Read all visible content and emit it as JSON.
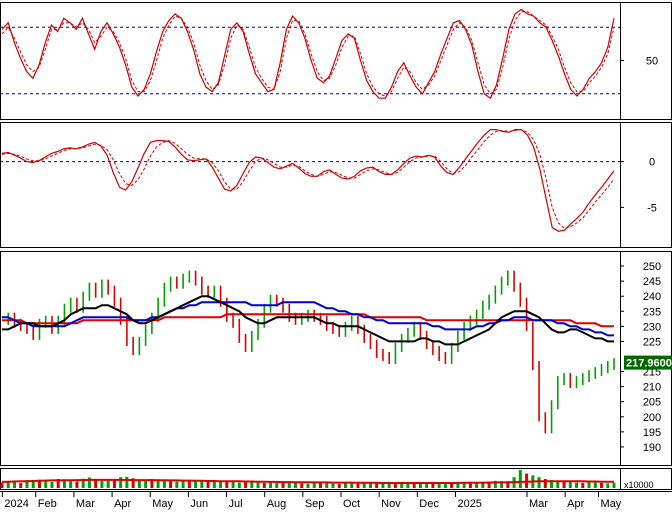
{
  "colors": {
    "price_line": "#000000",
    "candle_up": "#00a000",
    "candle_down": "#dd0000",
    "ma_short": "#000000",
    "ma_mid": "#0000cc",
    "ma_long": "#dd0000",
    "oscillator": "#cc0000",
    "guide": "#0000aa",
    "last_price_bg": "#006600",
    "last_price_fg": "#ffffff",
    "volume_up": "#00a000",
    "volume_down": "#dd0000",
    "volume_avg": "#dd0000"
  },
  "chart_data": [
    {
      "type": "line",
      "panel": "stochastic",
      "yticks": [
        "50"
      ],
      "ylim": [
        0,
        100
      ],
      "reference_lines": [
        20,
        80
      ],
      "series": [
        {
          "style": "solid",
          "values": [
            78,
            84,
            66,
            52,
            40,
            34,
            46,
            66,
            82,
            76,
            88,
            84,
            78,
            88,
            74,
            60,
            76,
            84,
            74,
            62,
            46,
            26,
            18,
            24,
            38,
            58,
            76,
            86,
            92,
            88,
            76,
            60,
            38,
            26,
            22,
            30,
            54,
            78,
            84,
            76,
            56,
            38,
            30,
            22,
            24,
            48,
            78,
            90,
            84,
            70,
            50,
            34,
            30,
            36,
            52,
            68,
            74,
            70,
            50,
            32,
            22,
            16,
            16,
            26,
            40,
            48,
            36,
            26,
            20,
            30,
            40,
            56,
            70,
            84,
            86,
            78,
            64,
            40,
            20,
            16,
            28,
            52,
            78,
            92,
            96,
            92,
            90,
            84,
            80,
            68,
            54,
            38,
            24,
            18,
            24,
            34,
            40,
            48,
            62,
            88
          ]
        },
        {
          "style": "dashed",
          "values": [
            74,
            80,
            70,
            58,
            46,
            40,
            44,
            60,
            78,
            78,
            84,
            84,
            80,
            84,
            78,
            66,
            72,
            80,
            76,
            66,
            52,
            32,
            22,
            22,
            32,
            50,
            70,
            82,
            90,
            88,
            80,
            66,
            46,
            32,
            24,
            28,
            46,
            70,
            82,
            78,
            62,
            44,
            34,
            26,
            24,
            40,
            70,
            86,
            86,
            74,
            56,
            40,
            32,
            34,
            46,
            62,
            72,
            72,
            56,
            38,
            26,
            20,
            18,
            22,
            34,
            44,
            40,
            30,
            24,
            28,
            36,
            50,
            64,
            78,
            84,
            80,
            68,
            48,
            28,
            20,
            24,
            44,
            70,
            86,
            94,
            94,
            90,
            86,
            82,
            72,
            60,
            44,
            30,
            22,
            22,
            30,
            36,
            44,
            56,
            80
          ]
        }
      ],
      "x_count": 100
    },
    {
      "type": "line",
      "panel": "macd",
      "yticks": [
        "0",
        "-5"
      ],
      "ylim": [
        -9,
        4
      ],
      "reference_lines": [
        0
      ],
      "series": [
        {
          "style": "solid",
          "values": [
            0.9,
            1.0,
            0.7,
            0.4,
            0.0,
            -0.1,
            0.1,
            0.5,
            0.9,
            1.1,
            1.4,
            1.5,
            1.4,
            1.6,
            1.9,
            2.1,
            1.7,
            0.7,
            -1.2,
            -2.8,
            -3.1,
            -2.2,
            -0.7,
            0.9,
            2.1,
            2.3,
            2.3,
            2.2,
            1.6,
            0.8,
            0.2,
            0.1,
            0.2,
            0.3,
            -0.6,
            -1.8,
            -3.0,
            -3.2,
            -2.6,
            -1.3,
            -0.1,
            0.5,
            0.4,
            -0.1,
            -0.6,
            -0.8,
            -0.5,
            -0.2,
            -0.7,
            -1.3,
            -1.6,
            -1.6,
            -1.1,
            -0.9,
            -1.4,
            -1.8,
            -1.9,
            -1.6,
            -1.0,
            -0.7,
            -0.6,
            -1.1,
            -1.4,
            -1.4,
            -0.9,
            -0.2,
            0.4,
            0.6,
            0.5,
            0.7,
            0.5,
            -0.5,
            -1.2,
            -1.4,
            -0.6,
            0.3,
            1.2,
            2.1,
            2.9,
            3.5,
            3.5,
            3.3,
            3.2,
            3.5,
            3.5,
            2.9,
            1.6,
            -0.8,
            -4.0,
            -7.2,
            -7.6,
            -7.5,
            -6.8,
            -6.2,
            -5.5,
            -4.5,
            -3.6,
            -2.8,
            -1.9,
            -1.0
          ]
        },
        {
          "style": "dashed",
          "values": [
            0.8,
            0.9,
            0.8,
            0.6,
            0.3,
            0.1,
            0.1,
            0.3,
            0.6,
            0.9,
            1.2,
            1.4,
            1.4,
            1.5,
            1.7,
            1.9,
            1.8,
            1.3,
            0.2,
            -1.3,
            -2.4,
            -2.6,
            -2.0,
            -0.8,
            0.6,
            1.6,
            2.1,
            2.3,
            2.0,
            1.4,
            0.8,
            0.4,
            0.3,
            0.3,
            -0.1,
            -1.0,
            -2.2,
            -3.0,
            -3.0,
            -2.2,
            -1.0,
            0.0,
            0.4,
            0.2,
            -0.2,
            -0.6,
            -0.6,
            -0.4,
            -0.5,
            -1.0,
            -1.4,
            -1.6,
            -1.4,
            -1.1,
            -1.2,
            -1.5,
            -1.8,
            -1.8,
            -1.4,
            -1.0,
            -0.8,
            -0.9,
            -1.2,
            -1.4,
            -1.2,
            -0.6,
            0.0,
            0.4,
            0.5,
            0.6,
            0.6,
            0.0,
            -0.8,
            -1.3,
            -1.1,
            -0.4,
            0.5,
            1.3,
            2.2,
            2.9,
            3.3,
            3.4,
            3.3,
            3.4,
            3.5,
            3.2,
            2.4,
            0.8,
            -1.8,
            -5.0,
            -6.7,
            -7.3,
            -7.1,
            -6.7,
            -6.1,
            -5.3,
            -4.4,
            -3.6,
            -2.8,
            -1.9
          ]
        }
      ],
      "x_count": 100
    },
    {
      "type": "line",
      "panel": "price",
      "yticks": [
        "250",
        "245",
        "240",
        "235",
        "230",
        "225",
        "215",
        "210",
        "205",
        "200",
        "195",
        "190"
      ],
      "ylim": [
        185,
        254
      ],
      "last_price_label": "217.9600",
      "last_price": 217.96,
      "price": [
        232,
        233,
        231,
        230,
        229,
        227,
        231,
        232,
        229,
        232,
        236,
        238,
        236,
        240,
        243,
        241,
        244,
        242,
        238,
        232,
        225,
        222,
        225,
        229,
        233,
        238,
        243,
        245,
        244,
        246,
        247,
        245,
        242,
        241,
        242,
        238,
        233,
        231,
        226,
        223,
        227,
        231,
        236,
        239,
        238,
        236,
        233,
        232,
        233,
        234,
        233,
        232,
        230,
        229,
        228,
        230,
        232,
        229,
        226,
        224,
        221,
        220,
        219,
        223,
        226,
        228,
        230,
        227,
        224,
        222,
        220,
        219,
        223,
        227,
        230,
        232,
        234,
        237,
        239,
        242,
        245,
        247,
        243,
        238,
        230,
        217,
        200,
        196,
        204,
        212,
        213,
        211,
        212,
        213,
        214,
        215,
        216,
        217,
        217.96
      ],
      "ma_short": [
        229,
        229,
        230,
        231,
        231,
        231,
        230,
        230,
        230,
        231,
        232,
        234,
        235,
        236,
        236,
        236,
        237,
        237,
        236,
        235,
        234,
        232,
        231,
        231,
        232,
        233,
        234,
        235,
        236,
        237,
        238,
        239,
        240,
        240,
        239,
        238,
        237,
        236,
        235,
        233,
        232,
        231,
        231,
        232,
        233,
        233,
        233,
        233,
        233,
        233,
        233,
        232,
        231,
        231,
        230,
        230,
        230,
        230,
        229,
        228,
        227,
        226,
        225,
        225,
        225,
        225,
        225,
        226,
        226,
        225,
        225,
        224,
        224,
        224,
        225,
        226,
        227,
        228,
        229,
        231,
        233,
        234,
        235,
        235,
        235,
        234,
        233,
        231,
        229,
        228,
        228,
        229,
        229,
        228,
        227,
        226,
        226,
        225,
        225
      ],
      "ma_mid": [
        233,
        233,
        232,
        231,
        231,
        230,
        230,
        230,
        230,
        230,
        230,
        231,
        232,
        233,
        233,
        233,
        233,
        233,
        233,
        233,
        233,
        232,
        232,
        232,
        233,
        233,
        234,
        235,
        236,
        236,
        237,
        237,
        238,
        238,
        238,
        238,
        238,
        238,
        238,
        238,
        237,
        237,
        237,
        237,
        237,
        238,
        238,
        238,
        238,
        238,
        238,
        237,
        236,
        236,
        235,
        235,
        234,
        234,
        233,
        233,
        232,
        232,
        231,
        231,
        231,
        231,
        231,
        231,
        231,
        230,
        230,
        229,
        229,
        229,
        229,
        229,
        230,
        230,
        231,
        231,
        232,
        232,
        233,
        233,
        233,
        232,
        232,
        232,
        232,
        231,
        231,
        230,
        230,
        229,
        229,
        228,
        228,
        227,
        227
      ],
      "ma_long": [
        232,
        232,
        232,
        232,
        231,
        231,
        231,
        231,
        231,
        231,
        231,
        231,
        231,
        232,
        232,
        232,
        232,
        232,
        232,
        232,
        232,
        232,
        232,
        232,
        232,
        232,
        233,
        233,
        233,
        233,
        233,
        233,
        233,
        233,
        233,
        233,
        234,
        234,
        234,
        234,
        234,
        234,
        234,
        234,
        234,
        234,
        234,
        234,
        234,
        234,
        234,
        234,
        234,
        234,
        234,
        234,
        234,
        234,
        234,
        233,
        233,
        233,
        233,
        233,
        233,
        233,
        233,
        233,
        232,
        232,
        232,
        232,
        232,
        232,
        232,
        232,
        232,
        232,
        232,
        232,
        232,
        232,
        232,
        232,
        232,
        232,
        232,
        232,
        232,
        232,
        232,
        232,
        231,
        231,
        231,
        231,
        230,
        230,
        230
      ],
      "x_count": 99
    },
    {
      "type": "bar",
      "panel": "volume",
      "yticks": [
        "x10000"
      ],
      "values": [
        30,
        36,
        42,
        28,
        44,
        38,
        46,
        40,
        34,
        50,
        48,
        42,
        36,
        52,
        58,
        46,
        40,
        44,
        48,
        60,
        62,
        54,
        46,
        42,
        50,
        48,
        40,
        38,
        36,
        44,
        42,
        40,
        38,
        34,
        36,
        40,
        38,
        34,
        30,
        32,
        34,
        30,
        28,
        30,
        36,
        32,
        30,
        28,
        26,
        24,
        28,
        30,
        26,
        24,
        22,
        26,
        28,
        24,
        26,
        30,
        28,
        26,
        24,
        28,
        30,
        26,
        24,
        22,
        26,
        30,
        28,
        24,
        26,
        30,
        32,
        34,
        30,
        28,
        36,
        40,
        38,
        34,
        60,
        100,
        80,
        70,
        60,
        50,
        44,
        40,
        36,
        34,
        30,
        28,
        32,
        30,
        28,
        26,
        30
      ],
      "avg": [
        34,
        35,
        36,
        37,
        38,
        39,
        40,
        41,
        42,
        42,
        43,
        43,
        44,
        44,
        45,
        45,
        45,
        45,
        45,
        45,
        45,
        44,
        44,
        44,
        44,
        43,
        43,
        42,
        42,
        41,
        41,
        40,
        40,
        39,
        39,
        38,
        38,
        37,
        37,
        36,
        36,
        35,
        35,
        34,
        34,
        33,
        33,
        32,
        32,
        32,
        31,
        31,
        31,
        30,
        30,
        30,
        30,
        29,
        29,
        29,
        29,
        28,
        28,
        28,
        28,
        28,
        28,
        28,
        28,
        28,
        28,
        28,
        28,
        28,
        29,
        29,
        29,
        30,
        30,
        31,
        31,
        32,
        33,
        34,
        35,
        36,
        37,
        37,
        38,
        38,
        38,
        38,
        37,
        37,
        36,
        36,
        35,
        35,
        35
      ],
      "x_count": 99
    }
  ],
  "x_axis": {
    "labels": [
      "2024",
      "Feb",
      "Mar",
      "Apr",
      "May",
      "Jun",
      "Jul",
      "Aug",
      "Sep",
      "Oct",
      "Nov",
      "Dec",
      "2025",
      "Mar",
      "Apr",
      "May"
    ],
    "positions": [
      0.5,
      7.5,
      15.5,
      23.5,
      31.5,
      39.5,
      47.5,
      55.5,
      63.5,
      71.5,
      79.5,
      87.5,
      95.5,
      110.5,
      118.5,
      125.5
    ],
    "total_units": 130
  }
}
